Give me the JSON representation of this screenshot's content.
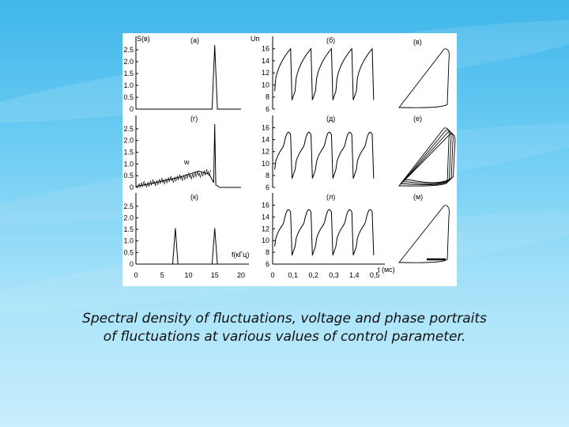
{
  "figure": {
    "panel_labels": [
      "(а)",
      "(б)",
      "(в)",
      "(г)",
      "(д)",
      "(е)",
      "(к)",
      "(л)",
      "(м)"
    ],
    "spectral": {
      "y_axis_label": "S(в)",
      "y_ticks": [
        "2.5",
        "2.0",
        "1.5",
        "1.0",
        "0.5",
        "0"
      ],
      "x_ticks": [
        "0",
        "5",
        "10",
        "15",
        "20"
      ],
      "x_axis_label": "f(кГц)",
      "noise_label": "w"
    },
    "voltage": {
      "y_axis_label": "Uп",
      "y_ticks": [
        "16",
        "14",
        "12",
        "10",
        "8",
        "6"
      ],
      "x_ticks": [
        "0",
        "0,1",
        "0,2",
        "0,3",
        "1,4",
        "0,5"
      ],
      "x_axis_label": "t (мс)"
    },
    "colors": {
      "trace": "#000000",
      "panel": "#ffffff"
    }
  },
  "chart_data": [
    {
      "type": "line",
      "panel": "(а)",
      "x": [
        0,
        14.5,
        15,
        15.5,
        20
      ],
      "y": [
        0,
        0,
        2.7,
        0,
        0
      ],
      "ylim": [
        0,
        2.8
      ],
      "xlim": [
        0,
        20
      ]
    },
    {
      "type": "line",
      "panel": "(г)",
      "x": [
        0,
        2,
        4,
        6,
        8,
        10,
        12,
        14,
        14.8,
        15,
        15.2,
        16,
        20
      ],
      "y": [
        0.05,
        0.12,
        0.22,
        0.32,
        0.42,
        0.55,
        0.7,
        0.55,
        0.2,
        2.7,
        0.1,
        0,
        0
      ],
      "ylim": [
        0,
        2.8
      ],
      "xlim": [
        0,
        20
      ]
    },
    {
      "type": "line",
      "panel": "(к)",
      "x": [
        0,
        7,
        7.5,
        8,
        14.5,
        15,
        15.5,
        20
      ],
      "y": [
        0,
        0,
        1.55,
        0,
        0,
        1.55,
        0,
        0
      ],
      "ylim": [
        0,
        2.8
      ],
      "xlim": [
        0,
        20
      ]
    }
  ]
}
